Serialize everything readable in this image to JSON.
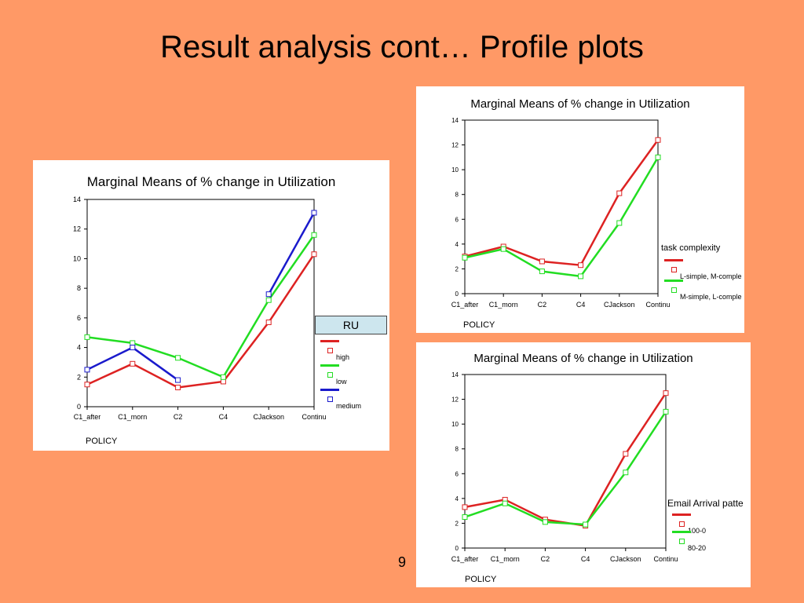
{
  "slide": {
    "title": "Result analysis cont… Profile plots",
    "page_number": "9",
    "background": "#ff9966"
  },
  "chart_data": [
    {
      "type": "line",
      "title": "Marginal Means of % change in Utilization",
      "xlabel": "POLICY",
      "categories": [
        "C1_after",
        "C1_morn",
        "C2",
        "C4",
        "CJackson",
        "Continu"
      ],
      "yticks": [
        0,
        2,
        4,
        6,
        8,
        10,
        12,
        14
      ],
      "ylim": [
        0,
        14
      ],
      "legend": {
        "title": "RU",
        "placement": "right"
      },
      "series": [
        {
          "name": "high",
          "color": "#dd2222",
          "values": [
            1.5,
            2.9,
            1.3,
            1.7,
            5.7,
            10.3
          ]
        },
        {
          "name": "low",
          "color": "#22dd22",
          "values": [
            4.7,
            4.3,
            3.3,
            2.0,
            7.2,
            11.6
          ]
        },
        {
          "name": "medium",
          "color": "#1a1acc",
          "values": [
            2.5,
            4.0,
            1.8,
            null,
            7.6,
            13.1
          ]
        }
      ]
    },
    {
      "type": "line",
      "title": "Marginal Means of % change in Utilization",
      "xlabel": "POLICY",
      "categories": [
        "C1_after",
        "C1_morn",
        "C2",
        "C4",
        "CJackson",
        "Continu"
      ],
      "yticks": [
        0,
        2,
        4,
        6,
        8,
        10,
        12,
        14
      ],
      "ylim": [
        0,
        14
      ],
      "legend": {
        "title": "task complexity",
        "placement": "right"
      },
      "series": [
        {
          "name": "L-simple, M-comple",
          "color": "#dd2222",
          "values": [
            3.0,
            3.8,
            2.6,
            2.3,
            8.1,
            12.4
          ]
        },
        {
          "name": "M-simple, L-comple",
          "color": "#22dd22",
          "values": [
            2.9,
            3.6,
            1.8,
            1.4,
            5.7,
            11.0
          ]
        }
      ]
    },
    {
      "type": "line",
      "title": "Marginal Means of % change in Utilization",
      "xlabel": "POLICY",
      "categories": [
        "C1_after",
        "C1_morn",
        "C2",
        "C4",
        "CJackson",
        "Continu"
      ],
      "yticks": [
        0,
        2,
        4,
        6,
        8,
        10,
        12,
        14
      ],
      "ylim": [
        0,
        14
      ],
      "legend": {
        "title": "Email Arrival patte",
        "placement": "right"
      },
      "series": [
        {
          "name": "100-0",
          "color": "#dd2222",
          "values": [
            3.3,
            3.9,
            2.3,
            1.8,
            7.6,
            12.5
          ]
        },
        {
          "name": "80-20",
          "color": "#22dd22",
          "values": [
            2.5,
            3.6,
            2.1,
            1.9,
            6.1,
            11.0
          ]
        }
      ]
    }
  ]
}
